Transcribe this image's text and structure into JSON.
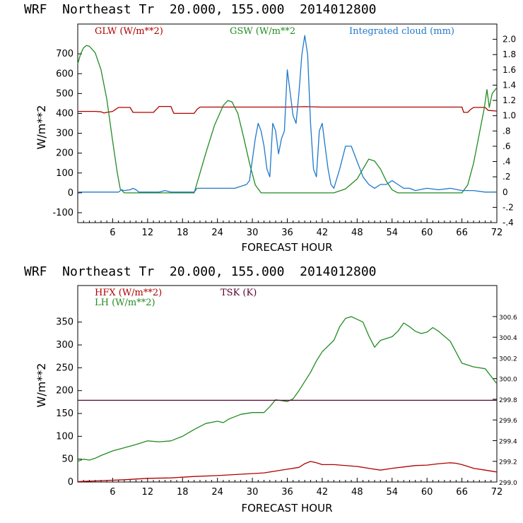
{
  "chart_data": [
    {
      "type": "line",
      "title": "WRF  Northeast Tr  20.000, 155.000  2014012800",
      "xlabel": "FORECAST HOUR",
      "ylabel": "W/m**2",
      "xlim": [
        0,
        72
      ],
      "ylim": [
        -150,
        850
      ],
      "xticks": [
        6,
        12,
        18,
        24,
        30,
        36,
        42,
        48,
        54,
        60,
        66,
        72
      ],
      "yticks": [
        -100,
        0,
        100,
        200,
        300,
        400,
        500,
        600,
        700
      ],
      "y2lim": [
        -0.4,
        2.2
      ],
      "y2ticks": [
        "-.4",
        "-.2",
        "0",
        ".2",
        ".4",
        ".6",
        ".8",
        "1.0",
        "1.2",
        "1.4",
        "1.6",
        "1.8",
        "2.0"
      ],
      "y2values": [
        -0.4,
        -0.2,
        0,
        0.2,
        0.4,
        0.6,
        0.8,
        1.0,
        1.2,
        1.4,
        1.6,
        1.8,
        2.0
      ],
      "series": [
        {
          "name": "GLW (W/m**2)",
          "color": "#b00000",
          "axis": "left",
          "points": [
            [
              0,
              410
            ],
            [
              3,
              410
            ],
            [
              4,
              408
            ],
            [
              4.5,
              402
            ],
            [
              5,
              405
            ],
            [
              6,
              410
            ],
            [
              6.5,
              420
            ],
            [
              7,
              430
            ],
            [
              9,
              430
            ],
            [
              9.5,
              405
            ],
            [
              13,
              405
            ],
            [
              13.5,
              420
            ],
            [
              14,
              435
            ],
            [
              16,
              435
            ],
            [
              16.5,
              400
            ],
            [
              20,
              400
            ],
            [
              20.5,
              420
            ],
            [
              21,
              432
            ],
            [
              26,
              432
            ],
            [
              28,
              432
            ],
            [
              30,
              432
            ],
            [
              36,
              432
            ],
            [
              39,
              434
            ],
            [
              42,
              432
            ],
            [
              48,
              432
            ],
            [
              54,
              432
            ],
            [
              60,
              432
            ],
            [
              66,
              432
            ],
            [
              66.3,
              405
            ],
            [
              67,
              405
            ],
            [
              67.5,
              420
            ],
            [
              68,
              430
            ],
            [
              70,
              430
            ],
            [
              70.5,
              415
            ],
            [
              72,
              412
            ]
          ]
        },
        {
          "name": "GSW (W/m**2",
          "color": "#228b22",
          "axis": "left",
          "points": [
            [
              0,
              650
            ],
            [
              0.5,
              700
            ],
            [
              1,
              730
            ],
            [
              1.5,
              742
            ],
            [
              2,
              738
            ],
            [
              3,
              705
            ],
            [
              4,
              620
            ],
            [
              5,
              470
            ],
            [
              6,
              260
            ],
            [
              6.8,
              100
            ],
            [
              7.3,
              20
            ],
            [
              8,
              0
            ],
            [
              20,
              0
            ],
            [
              20.6,
              60
            ],
            [
              22,
              200
            ],
            [
              23.5,
              340
            ],
            [
              25,
              440
            ],
            [
              25.8,
              465
            ],
            [
              26.5,
              458
            ],
            [
              27.5,
              400
            ],
            [
              28.5,
              280
            ],
            [
              29.5,
              150
            ],
            [
              30.5,
              40
            ],
            [
              31.5,
              0
            ],
            [
              44,
              0
            ],
            [
              46,
              20
            ],
            [
              48,
              70
            ],
            [
              49,
              120
            ],
            [
              50,
              170
            ],
            [
              51,
              160
            ],
            [
              52,
              120
            ],
            [
              53,
              60
            ],
            [
              54,
              15
            ],
            [
              55,
              0
            ],
            [
              66,
              0
            ],
            [
              67,
              40
            ],
            [
              68,
              150
            ],
            [
              69,
              300
            ],
            [
              69.8,
              420
            ],
            [
              70.3,
              520
            ],
            [
              70.7,
              430
            ],
            [
              71.2,
              500
            ],
            [
              72,
              530
            ]
          ]
        },
        {
          "name": "Integrated cloud (mm)",
          "color": "#1f78c8",
          "axis": "right",
          "points": [
            [
              0,
              0
            ],
            [
              7,
              0
            ],
            [
              7.5,
              0.03
            ],
            [
              8,
              0.02
            ],
            [
              9,
              0.03
            ],
            [
              9.5,
              0.05
            ],
            [
              10,
              0.03
            ],
            [
              10.5,
              0
            ],
            [
              14,
              0
            ],
            [
              15,
              0.02
            ],
            [
              16,
              0
            ],
            [
              20,
              0
            ],
            [
              20.5,
              0.05
            ],
            [
              24,
              0.05
            ],
            [
              27,
              0.05
            ],
            [
              29,
              0.1
            ],
            [
              29.5,
              0.15
            ],
            [
              30.5,
              0.7
            ],
            [
              31,
              0.9
            ],
            [
              31.5,
              0.8
            ],
            [
              32,
              0.6
            ],
            [
              32.5,
              0.3
            ],
            [
              33,
              0.2
            ],
            [
              33.5,
              0.9
            ],
            [
              34,
              0.8
            ],
            [
              34.5,
              0.5
            ],
            [
              35,
              0.7
            ],
            [
              35.5,
              0.8
            ],
            [
              36,
              1.6
            ],
            [
              36.5,
              1.3
            ],
            [
              37,
              1.0
            ],
            [
              37.5,
              0.9
            ],
            [
              38,
              1.3
            ],
            [
              38.5,
              1.8
            ],
            [
              39,
              2.05
            ],
            [
              39.5,
              1.8
            ],
            [
              40,
              0.9
            ],
            [
              40.5,
              0.3
            ],
            [
              41,
              0.2
            ],
            [
              41.5,
              0.8
            ],
            [
              42,
              0.9
            ],
            [
              42.5,
              0.6
            ],
            [
              43,
              0.3
            ],
            [
              43.5,
              0.1
            ],
            [
              44,
              0.05
            ],
            [
              45,
              0.3
            ],
            [
              46,
              0.6
            ],
            [
              47,
              0.6
            ],
            [
              48,
              0.4
            ],
            [
              48.5,
              0.3
            ],
            [
              49,
              0.2
            ],
            [
              50,
              0.1
            ],
            [
              51,
              0.05
            ],
            [
              52,
              0.1
            ],
            [
              53,
              0.1
            ],
            [
              54,
              0.15
            ],
            [
              55,
              0.1
            ],
            [
              56,
              0.05
            ],
            [
              57,
              0.05
            ],
            [
              58,
              0.02
            ],
            [
              60,
              0.05
            ],
            [
              62,
              0.03
            ],
            [
              64,
              0.05
            ],
            [
              66,
              0.02
            ],
            [
              68,
              0.02
            ],
            [
              70,
              0
            ],
            [
              72,
              0
            ]
          ]
        }
      ],
      "legend": "top"
    },
    {
      "type": "line",
      "title": "WRF  Northeast Tr  20.000, 155.000  2014012800",
      "xlabel": "FORECAST HOUR",
      "ylabel": "W/m**2",
      "xlim": [
        0,
        72
      ],
      "ylim": [
        0,
        430
      ],
      "xticks": [
        6,
        12,
        18,
        24,
        30,
        36,
        42,
        48,
        54,
        60,
        66,
        72
      ],
      "yticks": [
        0,
        50,
        100,
        150,
        200,
        250,
        300,
        350
      ],
      "y2lim": [
        299.0,
        300.9
      ],
      "y2ticks": [
        "299.0",
        "299.2",
        "299.4",
        "299.6",
        "299.8",
        "300.0",
        "300.2",
        "300.4",
        "300.6"
      ],
      "y2values": [
        299.0,
        299.2,
        299.4,
        299.6,
        299.8,
        300.0,
        300.2,
        300.4,
        300.6
      ],
      "series": [
        {
          "name": "HFX (W/m**2)",
          "color": "#b00000",
          "axis": "left",
          "points": [
            [
              0,
              1
            ],
            [
              4,
              3
            ],
            [
              8,
              5
            ],
            [
              12,
              8
            ],
            [
              16,
              9
            ],
            [
              20,
              12
            ],
            [
              24,
              14
            ],
            [
              28,
              17
            ],
            [
              32,
              20
            ],
            [
              34,
              24
            ],
            [
              36,
              28
            ],
            [
              38,
              32
            ],
            [
              39,
              40
            ],
            [
              40,
              45
            ],
            [
              41,
              42
            ],
            [
              42,
              38
            ],
            [
              44,
              38
            ],
            [
              48,
              34
            ],
            [
              50,
              30
            ],
            [
              52,
              26
            ],
            [
              54,
              30
            ],
            [
              56,
              33
            ],
            [
              58,
              36
            ],
            [
              60,
              37
            ],
            [
              62,
              40
            ],
            [
              64,
              42
            ],
            [
              65,
              41
            ],
            [
              66,
              38
            ],
            [
              68,
              30
            ],
            [
              70,
              26
            ],
            [
              72,
              22
            ]
          ]
        },
        {
          "name": "LH  (W/m**2)",
          "color": "#228b22",
          "axis": "left",
          "points": [
            [
              0,
              45
            ],
            [
              1,
              50
            ],
            [
              2,
              48
            ],
            [
              3,
              52
            ],
            [
              4,
              58
            ],
            [
              6,
              68
            ],
            [
              8,
              75
            ],
            [
              10,
              82
            ],
            [
              12,
              90
            ],
            [
              14,
              88
            ],
            [
              16,
              90
            ],
            [
              18,
              100
            ],
            [
              20,
              115
            ],
            [
              22,
              128
            ],
            [
              24,
              133
            ],
            [
              25,
              130
            ],
            [
              26,
              138
            ],
            [
              28,
              148
            ],
            [
              30,
              152
            ],
            [
              32,
              152
            ],
            [
              33,
              165
            ],
            [
              34,
              180
            ],
            [
              35,
              178
            ],
            [
              36,
              176
            ],
            [
              37,
              182
            ],
            [
              38,
              200
            ],
            [
              40,
              240
            ],
            [
              41,
              265
            ],
            [
              42,
              285
            ],
            [
              44,
              310
            ],
            [
              45,
              340
            ],
            [
              46,
              358
            ],
            [
              47,
              362
            ],
            [
              48,
              356
            ],
            [
              49,
              350
            ],
            [
              50,
              320
            ],
            [
              51,
              295
            ],
            [
              52,
              310
            ],
            [
              54,
              318
            ],
            [
              55,
              330
            ],
            [
              56,
              348
            ],
            [
              57,
              340
            ],
            [
              58,
              330
            ],
            [
              59,
              325
            ],
            [
              60,
              328
            ],
            [
              61,
              338
            ],
            [
              62,
              330
            ],
            [
              64,
              308
            ],
            [
              66,
              260
            ],
            [
              68,
              252
            ],
            [
              70,
              248
            ],
            [
              72,
              215
            ]
          ]
        },
        {
          "name": "TSK (K)",
          "color": "#5a0030",
          "axis": "right",
          "points": [
            [
              0,
              299.79
            ],
            [
              72,
              299.79
            ]
          ]
        }
      ],
      "legend": "top-left"
    }
  ]
}
